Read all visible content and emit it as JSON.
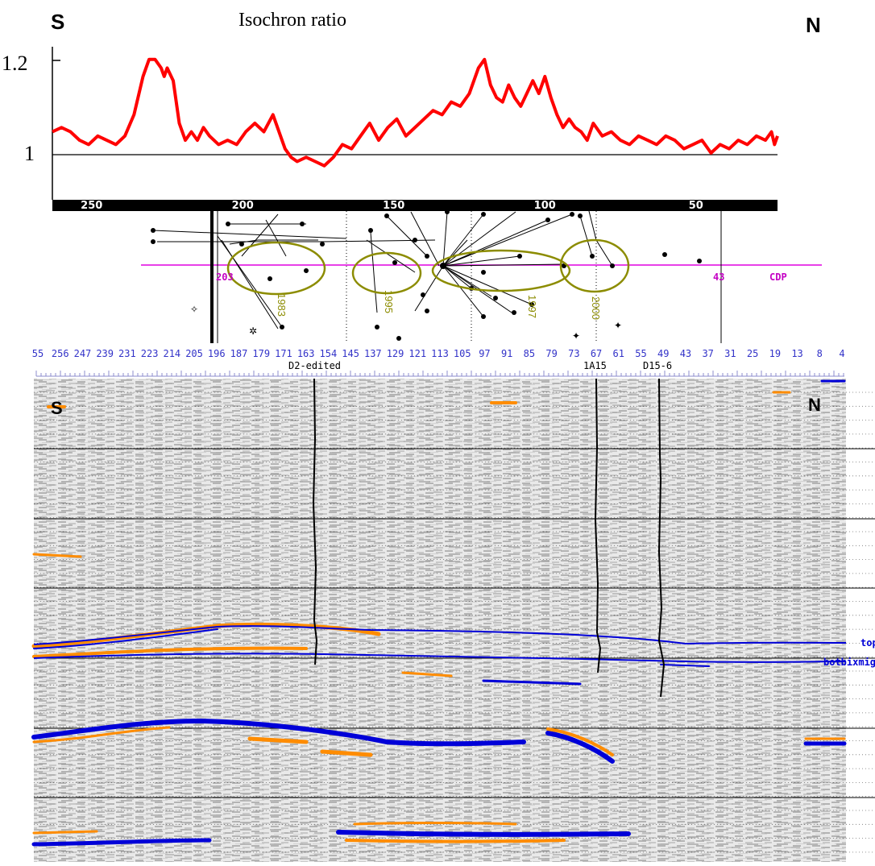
{
  "figure": {
    "south_label": "S",
    "north_label": "N",
    "title": "Isochron ratio"
  },
  "chart_data": [
    {
      "type": "line",
      "title": "Isochron ratio",
      "x_reversed": true,
      "xlim": [
        263,
        23
      ],
      "ylim": [
        0.88,
        1.24
      ],
      "y_ticks": [
        {
          "value": 1.2,
          "label": "1.2"
        },
        {
          "value": 1.0,
          "label": "1"
        }
      ],
      "x_ticks": [
        250,
        200,
        150,
        100,
        50
      ],
      "reference_line": 1.0,
      "series": [
        {
          "color": "#ff0000",
          "x": [
            263,
            260,
            257,
            254,
            251,
            248,
            245,
            242,
            239,
            236,
            233,
            231,
            229,
            227,
            226,
            225,
            223,
            221,
            219,
            217,
            215,
            213,
            211,
            208,
            205,
            202,
            199,
            196,
            193,
            190,
            188,
            186,
            184,
            182,
            179,
            176,
            173,
            170,
            167,
            164,
            161,
            158,
            155,
            152,
            149,
            146,
            143,
            140,
            137,
            134,
            131,
            128,
            125,
            122,
            120,
            118,
            116,
            114,
            112,
            110,
            108,
            106,
            104,
            102,
            100,
            98,
            96,
            94,
            92,
            90,
            88,
            86,
            84,
            81,
            78,
            75,
            72,
            69,
            66,
            63,
            60,
            57,
            54,
            51,
            48,
            45,
            42,
            39,
            36,
            33,
            30,
            27,
            25,
            24,
            23
          ],
          "values": [
            1.04,
            1.05,
            1.04,
            1.02,
            1.01,
            1.03,
            1.02,
            1.01,
            1.03,
            1.08,
            1.17,
            1.21,
            1.21,
            1.19,
            1.17,
            1.19,
            1.16,
            1.06,
            1.02,
            1.04,
            1.02,
            1.05,
            1.03,
            1.01,
            1.02,
            1.01,
            1.04,
            1.06,
            1.04,
            1.08,
            1.04,
            1.0,
            0.98,
            0.97,
            0.98,
            0.97,
            0.96,
            0.98,
            1.01,
            1.0,
            1.03,
            1.06,
            1.02,
            1.05,
            1.07,
            1.03,
            1.05,
            1.07,
            1.09,
            1.08,
            1.11,
            1.1,
            1.13,
            1.19,
            1.21,
            1.15,
            1.12,
            1.11,
            1.15,
            1.12,
            1.1,
            1.13,
            1.16,
            1.13,
            1.17,
            1.12,
            1.08,
            1.05,
            1.07,
            1.05,
            1.04,
            1.02,
            1.06,
            1.03,
            1.04,
            1.02,
            1.01,
            1.03,
            1.02,
            1.01,
            1.03,
            1.02,
            1.0,
            1.01,
            1.02,
            0.99,
            1.01,
            1.0,
            1.02,
            1.01,
            1.03,
            1.02,
            1.04,
            1.01,
            1.03
          ]
        }
      ]
    },
    {
      "type": "scatter",
      "description_free": true,
      "year_labels": [
        "1983",
        "1995",
        "1997",
        "2000"
      ],
      "cdp_start": "203",
      "cdp_end": "43",
      "cdp_label": "CDP"
    },
    {
      "type": "heatmap",
      "trace_ticks": [
        "55",
        "256",
        "247",
        "239",
        "231",
        "223",
        "214",
        "205",
        "196",
        "187",
        "179",
        "171",
        "163",
        "154",
        "145",
        "137",
        "129",
        "121",
        "113",
        "105",
        "97",
        "91",
        "85",
        "79",
        "73",
        "67",
        "61",
        "55",
        "49",
        "43",
        "37",
        "31",
        "25",
        "19",
        "13",
        "8",
        "4"
      ],
      "wells": [
        {
          "name": "D2-edited",
          "trace": 171
        },
        {
          "name": "1A15",
          "trace": 85
        },
        {
          "name": "D15-6",
          "trace": 61
        }
      ],
      "horizons": [
        "top",
        "botbixmig"
      ],
      "positive_color": "#ff8c00",
      "negative_color": "#0000d8"
    }
  ]
}
